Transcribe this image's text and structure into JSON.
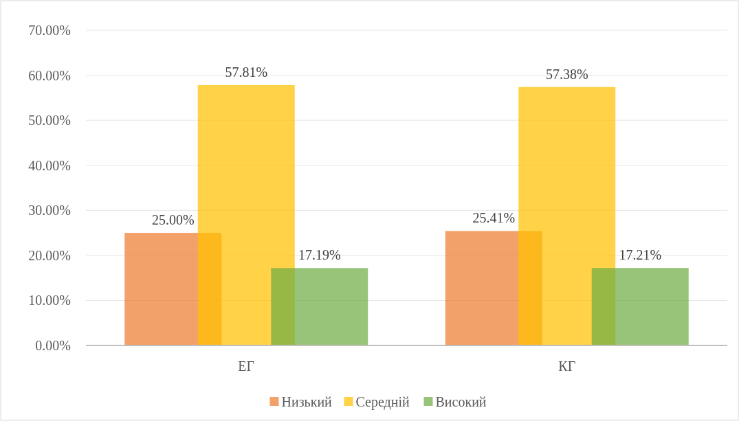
{
  "chart_data": {
    "type": "bar",
    "categories": [
      "ЕГ",
      "КГ"
    ],
    "series": [
      {
        "name": "Низький",
        "color": "#ed7d31",
        "values": [
          25.0,
          25.41
        ],
        "value_labels": [
          "25.00%",
          "25.41%"
        ]
      },
      {
        "name": "Середній",
        "color": "#ffc000",
        "values": [
          57.81,
          57.38
        ],
        "value_labels": [
          "57.81%",
          "57.38%"
        ]
      },
      {
        "name": "Високий",
        "color": "#70ad47",
        "values": [
          17.19,
          17.21
        ],
        "value_labels": [
          "17.19%",
          "17.21%"
        ]
      }
    ],
    "ylim": [
      0,
      70
    ],
    "yticks": [
      {
        "value": 0,
        "label": "0.00%"
      },
      {
        "value": 10,
        "label": "10.00%"
      },
      {
        "value": 20,
        "label": "20.00%"
      },
      {
        "value": 30,
        "label": "30.00%"
      },
      {
        "value": 40,
        "label": "40.00%"
      },
      {
        "value": 50,
        "label": "50.00%"
      },
      {
        "value": 60,
        "label": "60.00%"
      },
      {
        "value": 70,
        "label": "70.00%"
      }
    ],
    "grid": "y",
    "legend": "bottom"
  }
}
